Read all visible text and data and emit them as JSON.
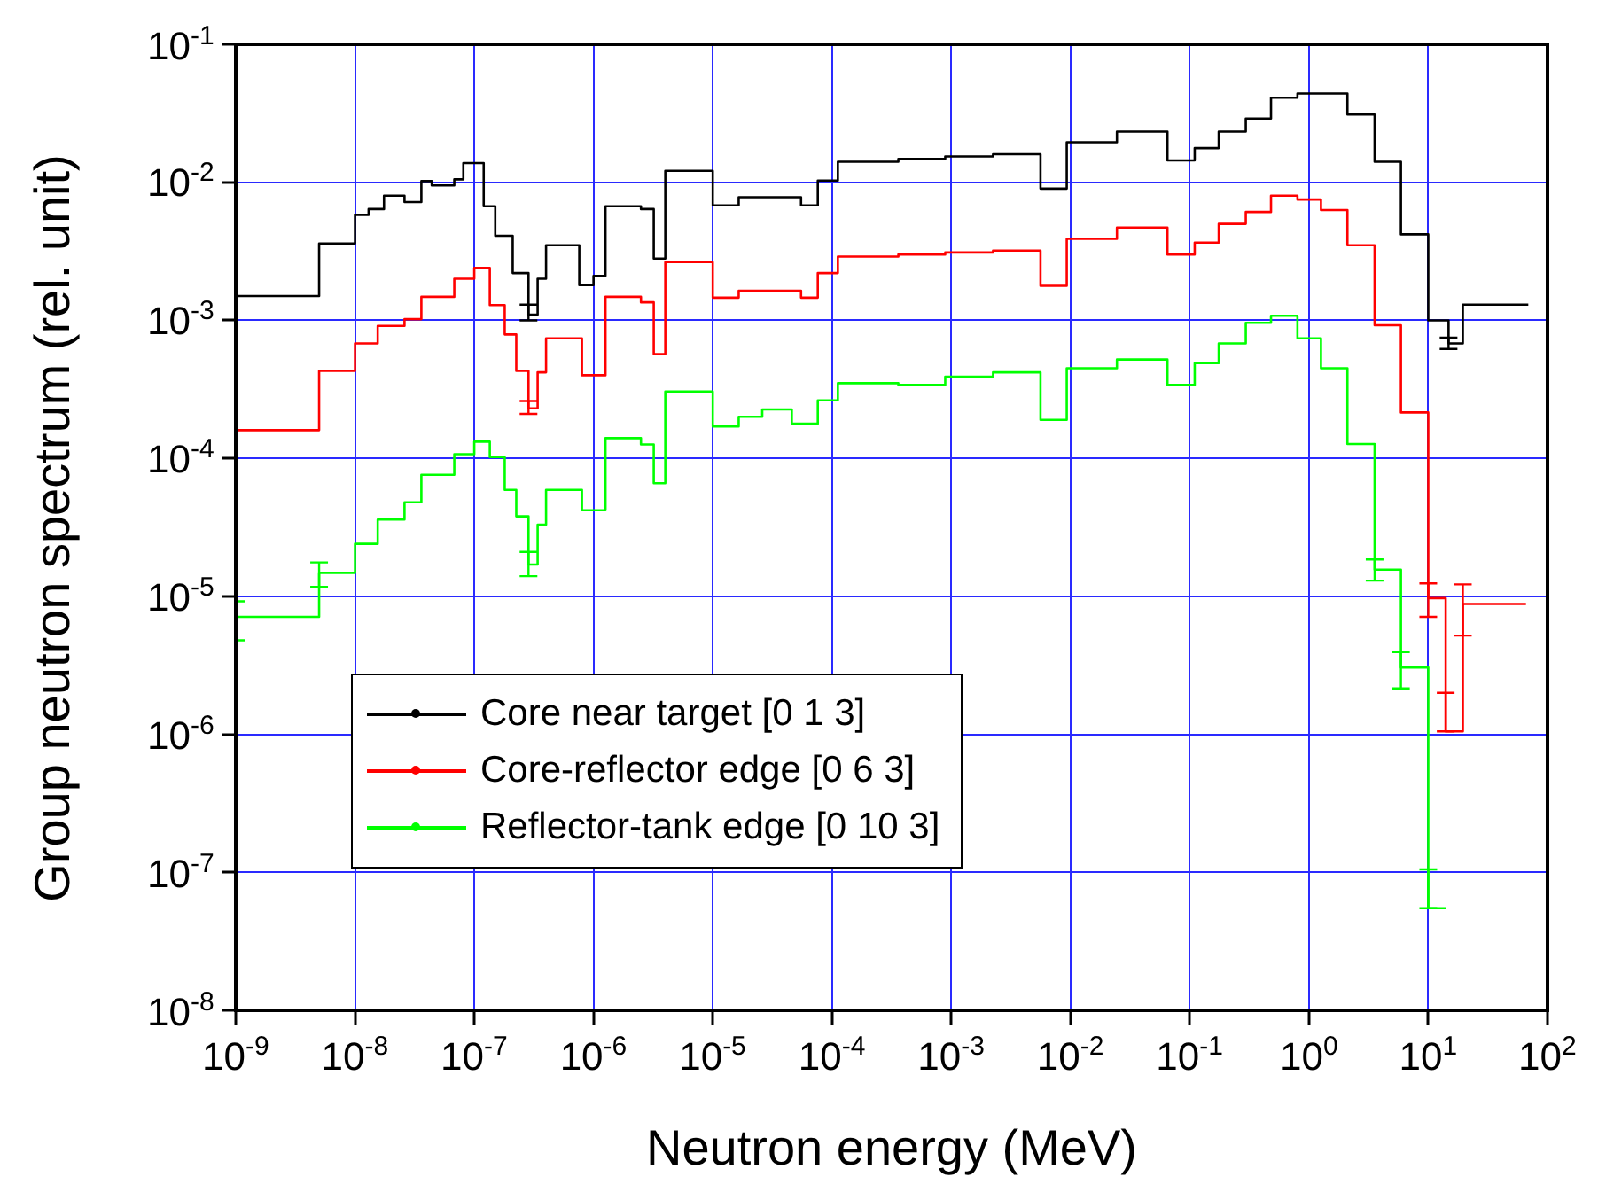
{
  "chart_data": {
    "type": "step",
    "xlabel": "Neutron energy (MeV)",
    "ylabel": "Group neutron spectrum (rel. unit)",
    "log": "xy",
    "grid": true,
    "legend": "bottom left",
    "xlim": [
      1e-09,
      100
    ],
    "ylim": [
      1e-08,
      0.1
    ],
    "xticks": [
      {
        "value": 1e-09,
        "label": "10$^{-9}$"
      },
      {
        "value": 1e-08,
        "label": "10$^{-8}$"
      },
      {
        "value": 1e-07,
        "label": "10$^{-7}$"
      },
      {
        "value": 1e-06,
        "label": "10$^{-6}$"
      },
      {
        "value": 1e-05,
        "label": "10$^{-5}$"
      },
      {
        "value": 0.0001,
        "label": "10$^{-4}$"
      },
      {
        "value": 0.001,
        "label": "10$^{-3}$"
      },
      {
        "value": 0.01,
        "label": "10$^{-2}$"
      },
      {
        "value": 0.1,
        "label": "10$^{-1}$"
      },
      {
        "value": 1,
        "label": "10$^{0}$"
      },
      {
        "value": 10,
        "label": "10$^{1}$"
      },
      {
        "value": 100,
        "label": "10$^{2}$"
      }
    ],
    "yticks": [
      {
        "value": 1e-08,
        "label": "10$^{-8}$"
      },
      {
        "value": 1e-07,
        "label": "10$^{-7}$"
      },
      {
        "value": 1e-06,
        "label": "10$^{-6}$"
      },
      {
        "value": 1e-05,
        "label": "10$^{-5}$"
      },
      {
        "value": 0.0001,
        "label": "10$^{-4}$"
      },
      {
        "value": 0.001,
        "label": "10$^{-3}$"
      },
      {
        "value": 0.01,
        "label": "10$^{-2}$"
      },
      {
        "value": 0.1,
        "label": "10$^{-1}$"
      }
    ],
    "series": [
      {
        "name": "Core near target [0 1 3]",
        "color": "#000000",
        "x": [
          1e-09,
          5e-09,
          1e-08,
          1.3e-08,
          1.75e-08,
          2.6e-08,
          3.6e-08,
          4.4e-08,
          6.8e-08,
          8.1e-08,
          1.2e-07,
          1.5e-07,
          2.1e-07,
          2.85e-07,
          3.4e-07,
          4e-07,
          7.6e-07,
          1e-06,
          1.26e-06,
          2.5e-06,
          3.2e-06,
          4e-06,
          1e-05,
          1.65e-05,
          5.5e-05,
          7.6e-05,
          0.000112,
          0.00036,
          0.00089,
          0.00224,
          0.0056,
          0.0093,
          0.0245,
          0.065,
          0.11,
          0.175,
          0.295,
          0.48,
          0.8,
          2.1,
          3.55,
          5.9,
          10,
          14.8,
          19.5,
          69
        ],
        "values": [
          0.0015,
          0.0036,
          0.0058,
          0.0064,
          0.008,
          0.0072,
          0.0102,
          0.0095,
          0.0105,
          0.0138,
          0.0067,
          0.0041,
          0.0022,
          0.0011,
          0.002,
          0.0035,
          0.0018,
          0.0021,
          0.0067,
          0.0064,
          0.0028,
          0.0121,
          0.0068,
          0.0078,
          0.0068,
          0.0103,
          0.0141,
          0.0148,
          0.0154,
          0.016,
          0.009,
          0.0195,
          0.0233,
          0.0144,
          0.0177,
          0.0233,
          0.029,
          0.041,
          0.044,
          0.031,
          0.0141,
          0.0042,
          0.001,
          0.00068,
          0.0013,
          0.0013
        ],
        "errors": [
          null,
          null,
          null,
          null,
          null,
          null,
          null,
          null,
          null,
          null,
          null,
          null,
          null,
          [
            0.001,
            0.0013
          ],
          null,
          null,
          null,
          null,
          null,
          null,
          null,
          null,
          null,
          null,
          null,
          null,
          null,
          null,
          null,
          null,
          null,
          null,
          null,
          null,
          null,
          null,
          null,
          null,
          null,
          null,
          null,
          null,
          null,
          [
            0.00062,
            0.00075
          ],
          null,
          null
        ]
      },
      {
        "name": "Core-reflector edge [0 6 3]",
        "color": "#ff0000",
        "x": [
          1e-09,
          5e-09,
          1e-08,
          1.55e-08,
          2.6e-08,
          3.6e-08,
          6.8e-08,
          1e-07,
          1.35e-07,
          1.8e-07,
          2.25e-07,
          2.85e-07,
          3.4e-07,
          4e-07,
          8e-07,
          1.26e-06,
          2.5e-06,
          3.2e-06,
          4e-06,
          1e-05,
          1.65e-05,
          5.5e-05,
          7.6e-05,
          0.000112,
          0.00036,
          0.00089,
          0.00224,
          0.0056,
          0.0093,
          0.0245,
          0.065,
          0.11,
          0.175,
          0.295,
          0.48,
          0.8,
          1.26,
          2.1,
          3.55,
          5.9,
          10,
          14,
          19.5,
          66
        ],
        "values": [
          0.00016,
          0.00043,
          0.00068,
          0.00091,
          0.00102,
          0.00148,
          0.002,
          0.0024,
          0.00129,
          0.00079,
          0.00043,
          0.00023,
          0.00042,
          0.00074,
          0.0004,
          0.00148,
          0.00135,
          0.00057,
          0.00264,
          0.00146,
          0.00164,
          0.00146,
          0.0022,
          0.0029,
          0.003,
          0.0031,
          0.0032,
          0.00178,
          0.0039,
          0.0047,
          0.003,
          0.00366,
          0.005,
          0.0061,
          0.008,
          0.0075,
          0.0063,
          0.0035,
          0.00092,
          0.000215,
          9.7e-06,
          1.05e-06,
          8.8e-06,
          8.8e-06
        ],
        "errors": [
          null,
          null,
          null,
          null,
          null,
          null,
          null,
          null,
          null,
          null,
          null,
          [
            0.00021,
            0.00026
          ],
          null,
          null,
          null,
          null,
          null,
          null,
          null,
          null,
          null,
          null,
          null,
          null,
          null,
          null,
          null,
          null,
          null,
          null,
          null,
          null,
          null,
          null,
          null,
          null,
          null,
          null,
          null,
          null,
          [
            7.1e-06,
            1.24e-05
          ],
          [
            1.05e-06,
            2e-06
          ],
          [
            5.2e-06,
            1.22e-05
          ],
          null
        ]
      },
      {
        "name": "Reflector-tank edge [0 10 3]",
        "color": "#00ff00",
        "x": [
          1e-09,
          5e-09,
          1e-08,
          1.55e-08,
          2.6e-08,
          3.6e-08,
          6.8e-08,
          1e-07,
          1.35e-07,
          1.8e-07,
          2.25e-07,
          2.85e-07,
          3.4e-07,
          4e-07,
          8e-07,
          1.26e-06,
          2.5e-06,
          3.2e-06,
          4e-06,
          1e-05,
          1.65e-05,
          2.6e-05,
          4.6e-05,
          7.6e-05,
          0.000112,
          0.00036,
          0.00089,
          0.00224,
          0.0056,
          0.0093,
          0.0245,
          0.065,
          0.11,
          0.175,
          0.295,
          0.48,
          0.8,
          1.26,
          2.1,
          3.55,
          5.9,
          10,
          14
        ],
        "values": [
          7.1e-06,
          1.48e-05,
          2.4e-05,
          3.6e-05,
          4.8e-05,
          7.6e-05,
          0.000107,
          0.000132,
          0.000102,
          5.9e-05,
          3.8e-05,
          1.7e-05,
          3.3e-05,
          5.9e-05,
          4.2e-05,
          0.00014,
          0.000126,
          6.6e-05,
          0.000305,
          0.00017,
          0.0002,
          0.000226,
          0.000178,
          0.000263,
          0.00035,
          0.00034,
          0.00039,
          0.00042,
          0.00019,
          0.00045,
          0.00052,
          0.00034,
          0.00049,
          0.00068,
          0.00096,
          0.00108,
          0.00074,
          0.00045,
          0.000127,
          1.56e-05,
          3.05e-06,
          5.5e-08,
          5.5e-08
        ],
        "errors": [
          [
            4.8e-06,
            9.2e-06
          ],
          [
            1.17e-05,
            1.76e-05
          ],
          null,
          null,
          null,
          null,
          null,
          null,
          null,
          null,
          null,
          [
            1.4e-05,
            2.1e-05
          ],
          null,
          null,
          null,
          null,
          null,
          null,
          null,
          null,
          null,
          null,
          null,
          null,
          null,
          null,
          null,
          null,
          null,
          null,
          null,
          null,
          null,
          null,
          null,
          null,
          null,
          null,
          null,
          [
            1.3e-05,
            1.85e-05
          ],
          [
            2.15e-06,
            3.94e-06
          ],
          [
            5.5e-08,
            1.05e-07
          ],
          null
        ]
      }
    ]
  }
}
